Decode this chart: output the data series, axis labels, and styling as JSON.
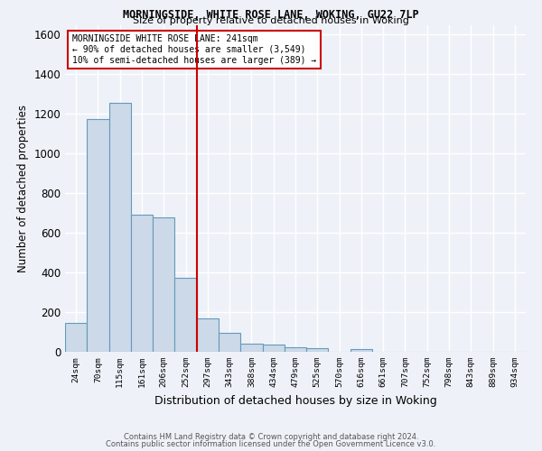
{
  "title1": "MORNINGSIDE, WHITE ROSE LANE, WOKING, GU22 7LP",
  "title2": "Size of property relative to detached houses in Woking",
  "xlabel": "Distribution of detached houses by size in Woking",
  "ylabel": "Number of detached properties",
  "categories": [
    "24sqm",
    "70sqm",
    "115sqm",
    "161sqm",
    "206sqm",
    "252sqm",
    "297sqm",
    "343sqm",
    "388sqm",
    "434sqm",
    "479sqm",
    "525sqm",
    "570sqm",
    "616sqm",
    "661sqm",
    "707sqm",
    "752sqm",
    "798sqm",
    "843sqm",
    "889sqm",
    "934sqm"
  ],
  "values": [
    147,
    1175,
    1255,
    690,
    680,
    375,
    168,
    95,
    42,
    35,
    22,
    20,
    0,
    15,
    0,
    0,
    0,
    0,
    0,
    0,
    0
  ],
  "bar_color": "#ccd9e8",
  "bar_edge_color": "#6699bb",
  "vline_x": 5.5,
  "vline_color": "#cc0000",
  "annotation_text": "MORNINGSIDE WHITE ROSE LANE: 241sqm\n← 90% of detached houses are smaller (3,549)\n10% of semi-detached houses are larger (389) →",
  "annotation_box_color": "#ffffff",
  "annotation_box_edge_color": "#cc0000",
  "ylim": [
    0,
    1650
  ],
  "yticks": [
    0,
    200,
    400,
    600,
    800,
    1000,
    1200,
    1400,
    1600
  ],
  "footer1": "Contains HM Land Registry data © Crown copyright and database right 2024.",
  "footer2": "Contains public sector information licensed under the Open Government Licence v3.0.",
  "bg_color": "#eef2f8",
  "grid_color": "#ffffff"
}
